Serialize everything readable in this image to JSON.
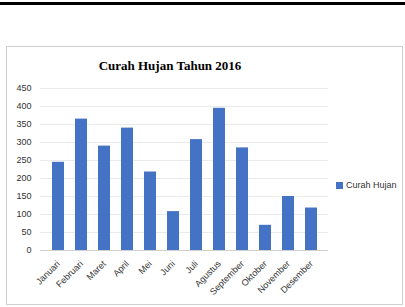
{
  "chart_data": {
    "type": "bar",
    "title": "Curah Hujan Tahun 2016",
    "categories": [
      "Januari",
      "Februari",
      "Maret",
      "April",
      "Mei",
      "Juni",
      "Juli",
      "Agustus",
      "September",
      "Oktober",
      "November",
      "Desember"
    ],
    "series": [
      {
        "name": "Curah Hujan",
        "color": "#4472c4",
        "values": [
          245,
          365,
          290,
          340,
          218,
          108,
          308,
          395,
          285,
          70,
          150,
          118
        ]
      }
    ],
    "ylim": [
      0,
      450
    ],
    "yticks": [
      0,
      50,
      100,
      150,
      200,
      250,
      300,
      350,
      400,
      450
    ],
    "grid": true,
    "legend": "right"
  }
}
